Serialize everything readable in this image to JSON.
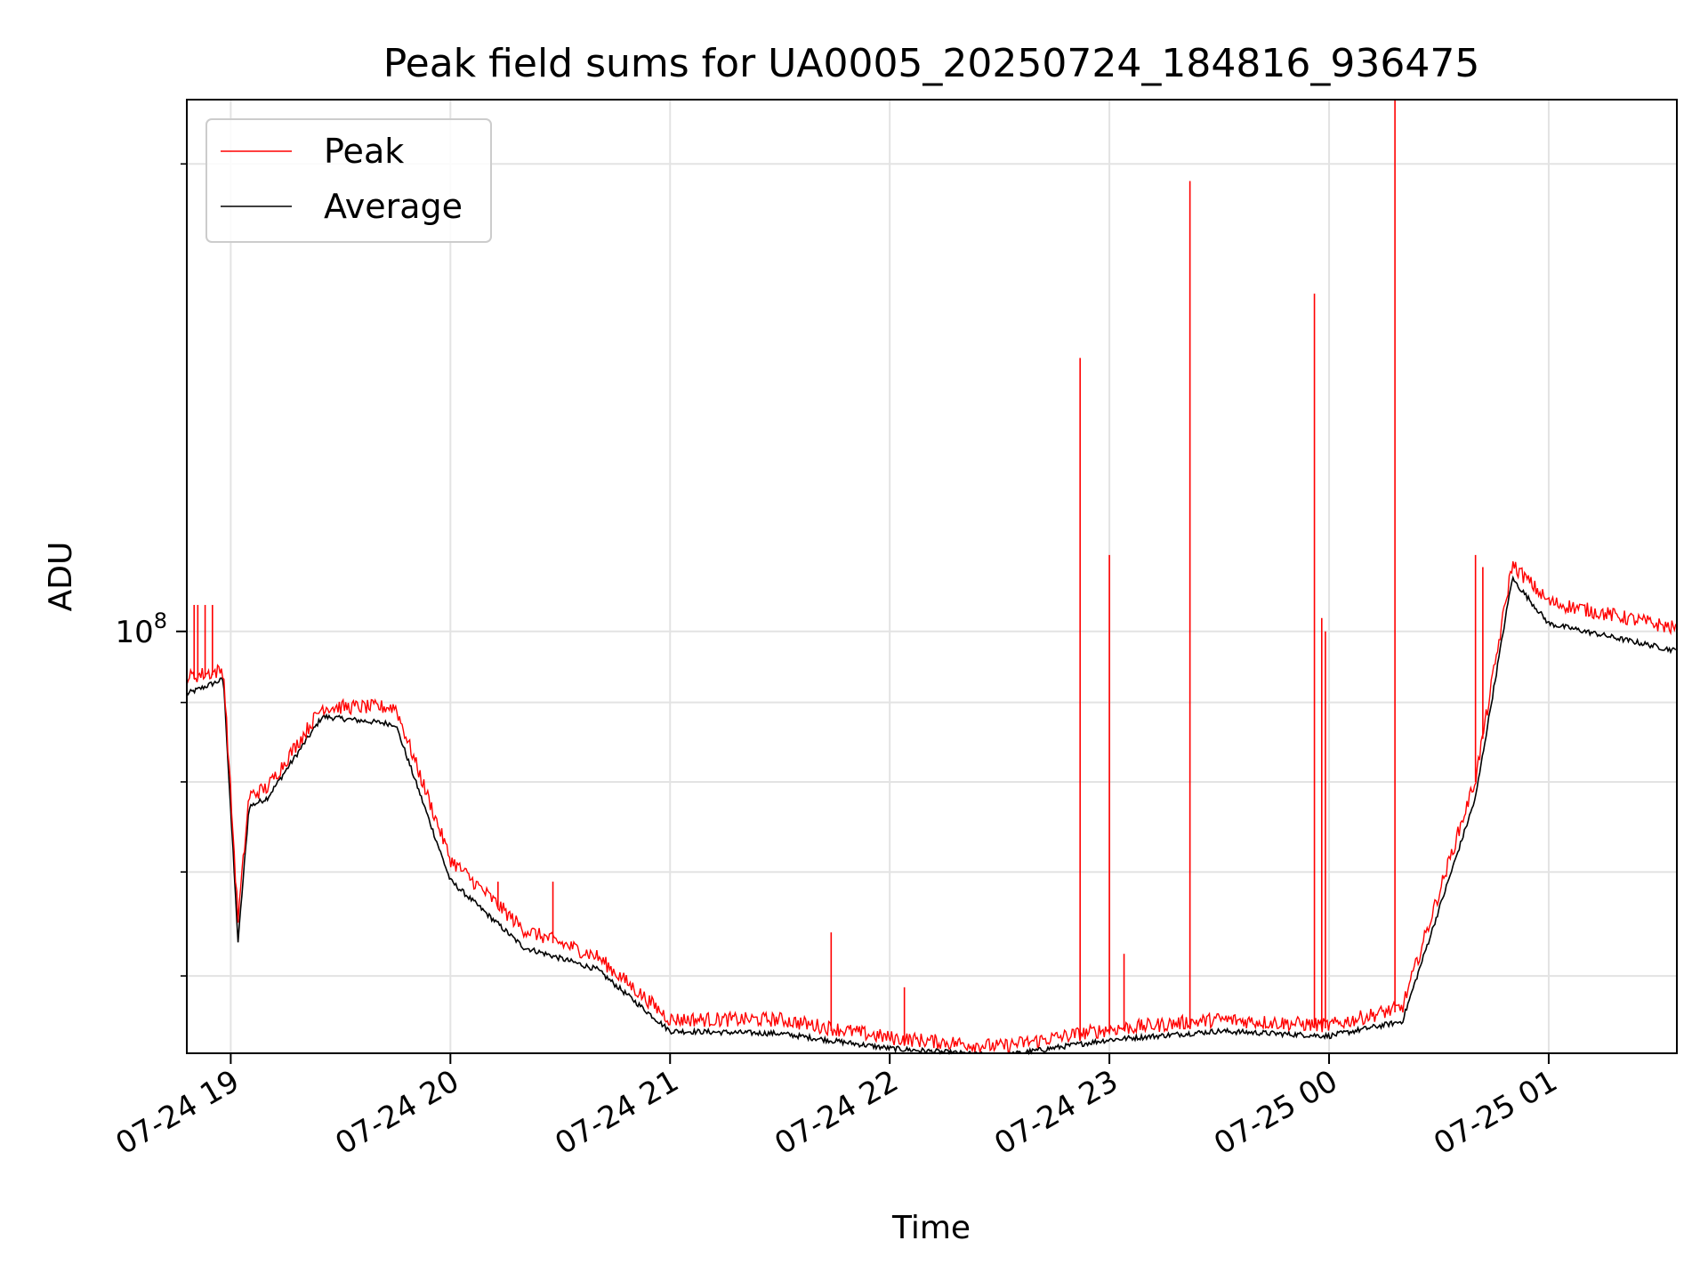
{
  "chart_data": {
    "type": "line",
    "title": "Peak field sums for UA0005_20250724_184816_936475",
    "xlabel": "Time",
    "ylabel": "ADU",
    "yscale": "log",
    "xlim": [
      "07-24 18:48",
      "07-25 01:35"
    ],
    "ylim": [
      53500000,
      220000000
    ],
    "grid": true,
    "legend_position": "top-left",
    "x_ticks": [
      "07-24 19",
      "07-24 20",
      "07-24 21",
      "07-24 22",
      "07-24 23",
      "07-25 00",
      "07-25 01"
    ],
    "y_tick_major_base": "10",
    "y_tick_major_exp": "8",
    "y_minor_ticks": [
      60000000,
      70000000,
      80000000,
      90000000,
      200000000,
      300000000,
      400000000,
      500000000
    ],
    "series": [
      {
        "name": "Peak",
        "color": "#ff0000",
        "baseline_points": [
          [
            "07-24 18:48",
            93000000
          ],
          [
            "07-24 18:58",
            94000000
          ],
          [
            "07-24 19:02",
            65000000
          ],
          [
            "07-24 19:05",
            78000000
          ],
          [
            "07-24 19:10",
            79000000
          ],
          [
            "07-24 19:25",
            89000000
          ],
          [
            "07-24 19:45",
            89000000
          ],
          [
            "07-24 20:00",
            71000000
          ],
          [
            "07-24 20:20",
            64000000
          ],
          [
            "07-24 20:40",
            61500000
          ],
          [
            "07-24 21:00",
            56000000
          ],
          [
            "07-24 21:30",
            56000000
          ],
          [
            "07-24 22:00",
            54500000
          ],
          [
            "07-24 22:30",
            53800000
          ],
          [
            "07-24 23:00",
            55200000
          ],
          [
            "07-24 23:30",
            56000000
          ],
          [
            "07-25 00:00",
            55500000
          ],
          [
            "07-25 00:20",
            57000000
          ],
          [
            "07-25 00:40",
            80000000
          ],
          [
            "07-25 00:50",
            110000000
          ],
          [
            "07-25 01:00",
            104000000
          ],
          [
            "07-25 01:35",
            100000000
          ]
        ],
        "spikes": [
          [
            "07-24 18:50",
            104000000
          ],
          [
            "07-24 18:51",
            104000000
          ],
          [
            "07-24 18:53",
            104000000
          ],
          [
            "07-24 18:55",
            104000000
          ],
          [
            "07-24 20:13",
            69000000
          ],
          [
            "07-24 20:28",
            69000000
          ],
          [
            "07-24 21:44",
            64000000
          ],
          [
            "07-24 22:04",
            59000000
          ],
          [
            "07-24 22:52",
            150000000
          ],
          [
            "07-24 23:00",
            112000000
          ],
          [
            "07-24 23:04",
            62000000
          ],
          [
            "07-24 23:22",
            195000000
          ],
          [
            "07-24 23:56",
            165000000
          ],
          [
            "07-24 23:58",
            102000000
          ],
          [
            "07-24 23:59",
            100000000
          ],
          [
            "07-25 00:18",
            220000000
          ],
          [
            "07-25 00:40",
            112000000
          ],
          [
            "07-25 00:42",
            110000000
          ]
        ]
      },
      {
        "name": "Average",
        "color": "#000000",
        "baseline_points": [
          [
            "07-24 18:48",
            91000000
          ],
          [
            "07-24 18:58",
            93000000
          ],
          [
            "07-24 19:02",
            63000000
          ],
          [
            "07-24 19:05",
            77000000
          ],
          [
            "07-24 19:10",
            78000000
          ],
          [
            "07-24 19:25",
            88000000
          ],
          [
            "07-24 19:45",
            87000000
          ],
          [
            "07-24 20:00",
            69000000
          ],
          [
            "07-24 20:20",
            62500000
          ],
          [
            "07-24 20:40",
            60500000
          ],
          [
            "07-24 21:00",
            55200000
          ],
          [
            "07-24 21:30",
            55000000
          ],
          [
            "07-24 22:00",
            53800000
          ],
          [
            "07-24 22:30",
            53200000
          ],
          [
            "07-24 23:00",
            54500000
          ],
          [
            "07-24 23:30",
            55200000
          ],
          [
            "07-25 00:00",
            54800000
          ],
          [
            "07-25 00:20",
            56000000
          ],
          [
            "07-25 00:40",
            78000000
          ],
          [
            "07-25 00:50",
            108000000
          ],
          [
            "07-25 01:00",
            101000000
          ],
          [
            "07-25 01:35",
            97000000
          ]
        ]
      }
    ]
  }
}
